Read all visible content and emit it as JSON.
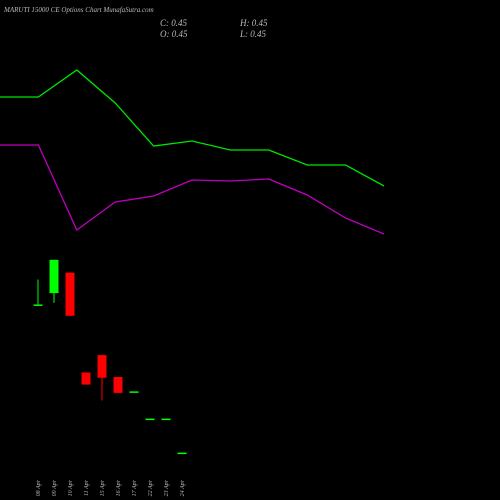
{
  "chart_data": [
    {
      "type": "line",
      "series": [
        {
          "name": "upper",
          "color": "#00e600",
          "values": [
            76.5,
            76.5,
            90,
            73.5,
            52,
            54.5,
            50,
            50,
            42.5,
            42.5,
            32
          ]
        },
        {
          "name": "lower",
          "color": "#c000c0",
          "values": [
            52.5,
            52.5,
            10,
            24,
            27,
            35,
            34.5,
            35.5,
            27.5,
            16,
            8
          ]
        }
      ],
      "ylim": [
        0,
        100
      ]
    },
    {
      "type": "candlestick",
      "title": "MARUTI 15000 CE Options Chart MunafaSutra.com",
      "ohlc_labels": {
        "close": "C: 0.45",
        "high": "H: 0.45",
        "open": "O: 0.45",
        "low": "L: 0.45"
      },
      "categories": [
        "08 Apr",
        "09 Apr",
        "10 Apr",
        "11 Apr",
        "15 Apr",
        "16 Apr",
        "17 Apr",
        "22 Apr",
        "23 Apr",
        "24 Apr"
      ],
      "open": [
        2.41,
        2.56,
        2.83,
        1.51,
        1.74,
        1.45,
        1.26,
        0.9,
        0.9,
        0.45
      ],
      "high": [
        2.74,
        3.0,
        2.83,
        1.51,
        1.74,
        1.45,
        1.26,
        0.9,
        0.9,
        0.45
      ],
      "low": [
        2.41,
        2.43,
        2.26,
        1.35,
        1.14,
        1.24,
        1.26,
        0.9,
        0.9,
        0.45
      ],
      "close": [
        2.41,
        3.0,
        2.26,
        1.35,
        1.44,
        1.24,
        1.26,
        0.9,
        0.9,
        0.45
      ],
      "up_color": "#00ff00",
      "down_color": "#ff0000",
      "ylim": [
        0.22,
        3.13
      ]
    }
  ]
}
